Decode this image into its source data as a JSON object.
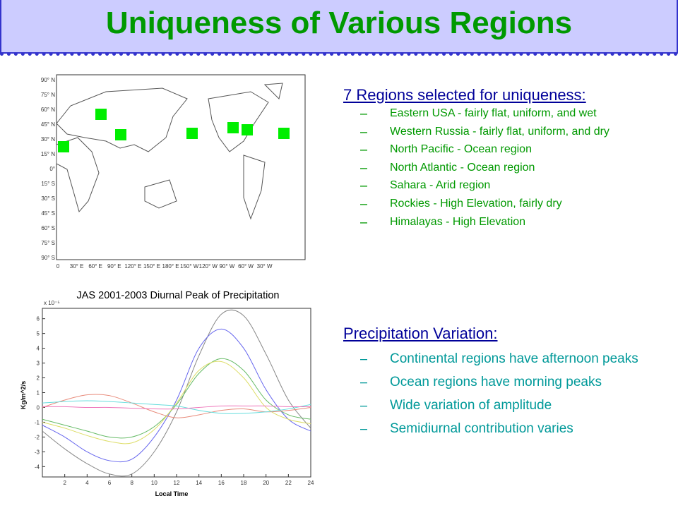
{
  "header": {
    "title": "Uniqueness of Various Regions"
  },
  "map": {
    "lat_labels": [
      "90° N",
      "75° N",
      "60° N",
      "45° N",
      "30° N",
      "15° N",
      "0°",
      "15° S",
      "30° S",
      "45° S",
      "60° S",
      "75° S",
      "90° S"
    ],
    "lon_labels": [
      "0",
      "30° E",
      "60° E",
      "90° E",
      "120° E",
      "150° E",
      "180° E",
      "150° W",
      "120° W",
      "90° W",
      "60° W",
      "30° W"
    ]
  },
  "regions": {
    "heading": "7 Regions selected for uniqueness:",
    "items": [
      "Eastern USA - fairly flat, uniform, and wet",
      "Western Russia - fairly flat, uniform, and dry",
      "North Pacific - Ocean region",
      "North Atlantic - Ocean region",
      "Sahara - Arid region",
      "Rockies - High Elevation, fairly dry",
      "Himalayas - High Elevation"
    ]
  },
  "variation": {
    "heading": "Precipitation Variation:",
    "items": [
      "Continental regions have afternoon peaks",
      "Ocean regions have morning peaks",
      "Wide variation of amplitude",
      "Semidiurnal contribution varies"
    ]
  },
  "chart_data": {
    "type": "line",
    "title": "JAS 2001-2003 Diurnal Peak of Precipitation",
    "xlabel": "Local Time",
    "ylabel": "Kg/m^2/s",
    "y_exponent": "x 10⁻⁵",
    "x": [
      0,
      2,
      4,
      6,
      8,
      10,
      12,
      14,
      16,
      18,
      20,
      22,
      24
    ],
    "xlim": [
      0,
      24
    ],
    "xticks": [
      2,
      4,
      6,
      8,
      10,
      12,
      14,
      16,
      18,
      20,
      22,
      24
    ],
    "ylim": [
      -4.7,
      6.7
    ],
    "yticks": [
      -4,
      -3,
      -2,
      -1,
      0,
      1,
      2,
      3,
      4,
      5,
      6
    ],
    "series": [
      {
        "color": "#888888",
        "values": [
          -1.6,
          -2.8,
          -3.8,
          -4.5,
          -4.5,
          -3.0,
          -0.3,
          3.5,
          6.3,
          6.2,
          3.6,
          0.5,
          -1.4
        ]
      },
      {
        "color": "#6666ee",
        "values": [
          -1.2,
          -2.0,
          -3.0,
          -3.6,
          -3.5,
          -2.0,
          0.5,
          4.0,
          5.3,
          4.0,
          1.2,
          -0.8,
          -1.6
        ]
      },
      {
        "color": "#66bb66",
        "values": [
          -0.8,
          -1.2,
          -1.6,
          -2.0,
          -2.0,
          -1.3,
          0.2,
          2.3,
          3.3,
          2.5,
          0.5,
          -0.5,
          -0.8
        ]
      },
      {
        "color": "#dddd66",
        "values": [
          -1.0,
          -1.4,
          -1.9,
          -2.3,
          -2.4,
          -1.5,
          0.3,
          2.5,
          3.1,
          2.0,
          0.0,
          -0.8,
          -1.1
        ]
      },
      {
        "color": "#e88a7a",
        "values": [
          0,
          0.5,
          0.85,
          0.8,
          0.3,
          -0.3,
          -0.7,
          -0.5,
          -0.2,
          -0.1,
          -0.3,
          -0.2,
          0
        ]
      },
      {
        "color": "#66dddd",
        "values": [
          0.3,
          0.4,
          0.45,
          0.4,
          0.3,
          0.2,
          0.1,
          -0.2,
          -0.4,
          -0.4,
          -0.3,
          -0.1,
          0.2
        ]
      },
      {
        "color": "#ee77bb",
        "values": [
          0.05,
          0.05,
          0,
          0,
          -0.05,
          -0.1,
          -0.1,
          0,
          0.1,
          0.1,
          0.1,
          0.05,
          0.05
        ]
      }
    ]
  }
}
